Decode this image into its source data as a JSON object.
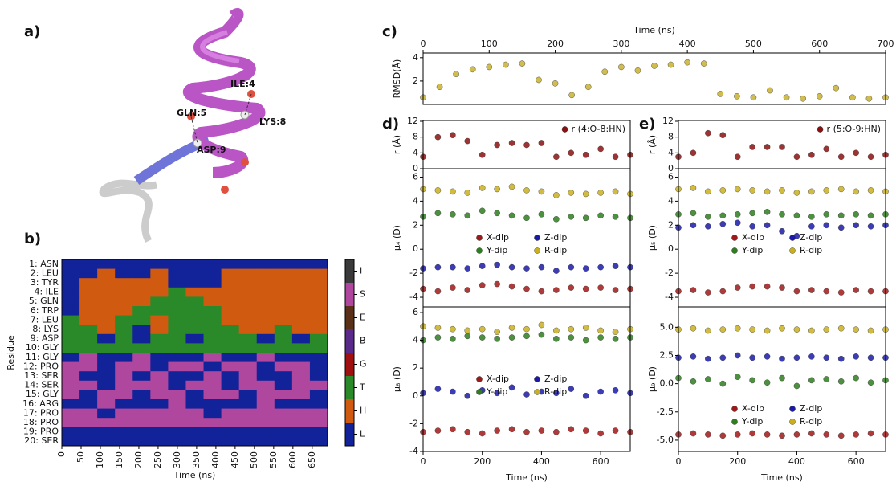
{
  "panel_labels": [
    "a)",
    "b)",
    "c)",
    "d)",
    "e)"
  ],
  "structure": {
    "labels": [
      "ILE:4",
      "GLN:5",
      "LYS:8",
      "ASP:9"
    ]
  },
  "chart_data": [
    {
      "type": "heatmap",
      "ylabel": "Residue",
      "xlabel": "Time (ns)",
      "categories": [
        "1: ASN",
        "2: LEU",
        "3: TYR",
        "4: ILE",
        "5: GLN",
        "6: TRP",
        "7: LEU",
        "8: LYS",
        "9: ASP",
        "10: GLY",
        "11: GLY",
        "12: PRO",
        "13: SER",
        "14: SER",
        "15: GLY",
        "16: ARG",
        "17: PRO",
        "18: PRO",
        "19: PRO",
        "20: SER"
      ],
      "xlim": [
        0,
        690
      ],
      "xticks": [
        0,
        50,
        100,
        150,
        200,
        250,
        300,
        350,
        400,
        450,
        500,
        550,
        600,
        650
      ],
      "colorbar": {
        "labels": [
          "I",
          "S",
          "E",
          "B",
          "G",
          "T",
          "H",
          "L"
        ],
        "colors": [
          "#3a3a3a",
          "#b0479e",
          "#5a3018",
          "#5a2a8a",
          "#a01010",
          "#2a8a2a",
          "#d05a10",
          "#12239a"
        ]
      },
      "matrix": [
        [
          7,
          7,
          7,
          7,
          7,
          7,
          7,
          7,
          7,
          7,
          7,
          7,
          7,
          7,
          7
        ],
        [
          7,
          7,
          6,
          7,
          7,
          6,
          7,
          7,
          7,
          6,
          6,
          6,
          6,
          6,
          6
        ],
        [
          7,
          6,
          6,
          6,
          6,
          6,
          7,
          7,
          7,
          6,
          6,
          6,
          6,
          6,
          6
        ],
        [
          7,
          6,
          6,
          6,
          6,
          6,
          5,
          6,
          6,
          6,
          6,
          6,
          6,
          6,
          6
        ],
        [
          7,
          6,
          6,
          6,
          6,
          5,
          5,
          5,
          6,
          6,
          6,
          6,
          6,
          6,
          6
        ],
        [
          7,
          6,
          6,
          6,
          5,
          5,
          5,
          5,
          5,
          6,
          6,
          6,
          6,
          6,
          6
        ],
        [
          5,
          6,
          6,
          5,
          5,
          6,
          5,
          5,
          5,
          6,
          6,
          6,
          6,
          6,
          6
        ],
        [
          5,
          5,
          6,
          5,
          7,
          6,
          5,
          5,
          5,
          5,
          6,
          6,
          5,
          6,
          6
        ],
        [
          5,
          5,
          7,
          5,
          7,
          5,
          5,
          7,
          5,
          5,
          5,
          7,
          5,
          7,
          5
        ],
        [
          5,
          5,
          5,
          5,
          5,
          5,
          5,
          5,
          5,
          5,
          5,
          5,
          5,
          5,
          5
        ],
        [
          7,
          1,
          7,
          7,
          1,
          7,
          7,
          7,
          1,
          7,
          7,
          1,
          7,
          7,
          7
        ],
        [
          1,
          1,
          7,
          1,
          1,
          7,
          1,
          1,
          7,
          1,
          1,
          7,
          1,
          1,
          7
        ],
        [
          1,
          7,
          7,
          1,
          7,
          1,
          7,
          7,
          1,
          7,
          1,
          7,
          7,
          1,
          7
        ],
        [
          1,
          1,
          7,
          1,
          1,
          1,
          7,
          1,
          1,
          7,
          1,
          1,
          7,
          1,
          1
        ],
        [
          1,
          7,
          1,
          1,
          7,
          1,
          1,
          7,
          1,
          1,
          7,
          1,
          1,
          1,
          7
        ],
        [
          7,
          7,
          1,
          7,
          7,
          7,
          1,
          7,
          7,
          7,
          7,
          1,
          7,
          7,
          7
        ],
        [
          1,
          1,
          7,
          1,
          1,
          1,
          1,
          1,
          7,
          1,
          1,
          1,
          1,
          1,
          1
        ],
        [
          1,
          1,
          1,
          1,
          1,
          1,
          1,
          1,
          1,
          1,
          1,
          1,
          1,
          1,
          1
        ],
        [
          7,
          7,
          7,
          7,
          7,
          7,
          7,
          7,
          7,
          7,
          7,
          7,
          7,
          7,
          7
        ],
        [
          7,
          7,
          7,
          7,
          7,
          7,
          7,
          7,
          7,
          7,
          7,
          7,
          7,
          7,
          7
        ]
      ]
    },
    {
      "type": "scatter",
      "xlabel": "Time (ns)",
      "xaxis": "top",
      "ylabel": "RMSD(Å)",
      "xlim": [
        0,
        700
      ],
      "xticks": [
        0,
        100,
        200,
        300,
        400,
        500,
        600,
        700
      ],
      "ylim": [
        0,
        4.4
      ],
      "yticks": [
        2,
        4
      ],
      "x": [
        0,
        25,
        50,
        75,
        100,
        125,
        150,
        175,
        200,
        225,
        250,
        275,
        300,
        325,
        350,
        375,
        400,
        425,
        450,
        475,
        500,
        525,
        550,
        575,
        600,
        625,
        650,
        675,
        700
      ],
      "color": "#c8b030",
      "values": [
        0.6,
        1.5,
        2.6,
        3.0,
        3.2,
        3.4,
        3.5,
        2.1,
        1.8,
        0.8,
        1.5,
        2.8,
        3.2,
        2.9,
        3.3,
        3.4,
        3.6,
        3.5,
        0.9,
        0.7,
        0.6,
        1.2,
        0.6,
        0.5,
        0.7,
        1.4,
        0.6,
        0.5,
        0.6
      ]
    },
    {
      "type": "scatter",
      "ylabel": "r (Å)",
      "xlim": [
        0,
        700
      ],
      "ylim": [
        0,
        12.2
      ],
      "yticks": [
        0,
        4,
        8,
        12
      ],
      "legend": "upper right",
      "x": [
        0,
        50,
        100,
        150,
        200,
        250,
        300,
        350,
        400,
        450,
        500,
        550,
        600,
        650,
        700
      ],
      "series": [
        {
          "name": "r (4:O-8:HN)",
          "color": "#8b1010",
          "values": [
            3,
            8,
            8.5,
            7,
            3.5,
            6,
            6.5,
            6,
            6.5,
            3,
            4,
            3.5,
            5,
            3,
            3.5
          ]
        }
      ]
    },
    {
      "type": "scatter",
      "ylabel": "μ₄ (D)",
      "xlim": [
        0,
        700
      ],
      "ylim": [
        -4.8,
        6.7
      ],
      "yticks": [
        -4,
        -2,
        0,
        2,
        4,
        6
      ],
      "legend": "center",
      "x": [
        0,
        50,
        100,
        150,
        200,
        250,
        300,
        350,
        400,
        450,
        500,
        550,
        600,
        650,
        700
      ],
      "series": [
        {
          "name": "X-dip",
          "color": "#a01818",
          "values": [
            -3.3,
            -3.5,
            -3.2,
            -3.4,
            -3.0,
            -2.9,
            -3.1,
            -3.3,
            -3.5,
            -3.4,
            -3.2,
            -3.3,
            -3.2,
            -3.4,
            -3.3
          ]
        },
        {
          "name": "Y-dip",
          "color": "#2e7d1e",
          "values": [
            2.7,
            3.0,
            2.9,
            2.8,
            3.2,
            3.0,
            2.8,
            2.6,
            2.9,
            2.5,
            2.7,
            2.6,
            2.8,
            2.7,
            2.6
          ]
        },
        {
          "name": "Z-dip",
          "color": "#1a1aa8",
          "values": [
            -1.6,
            -1.5,
            -1.5,
            -1.6,
            -1.4,
            -1.3,
            -1.5,
            -1.6,
            -1.5,
            -1.8,
            -1.5,
            -1.6,
            -1.5,
            -1.4,
            -1.5
          ]
        },
        {
          "name": "R-dip",
          "color": "#c9b020",
          "values": [
            5.0,
            4.9,
            4.8,
            4.7,
            5.1,
            5.0,
            5.2,
            4.9,
            4.8,
            4.5,
            4.7,
            4.6,
            4.7,
            4.8,
            4.6
          ]
        }
      ]
    },
    {
      "type": "scatter",
      "ylabel": "μ₈ (D)",
      "xlabel": "Time (ns)",
      "xlim": [
        0,
        700
      ],
      "xticks": [
        0,
        200,
        400,
        600
      ],
      "ylim": [
        -4,
        6.4
      ],
      "yticks": [
        -4,
        -2,
        0,
        2,
        4,
        6
      ],
      "legend": "center",
      "x": [
        0,
        50,
        100,
        150,
        200,
        250,
        300,
        350,
        400,
        450,
        500,
        550,
        600,
        650,
        700
      ],
      "series": [
        {
          "name": "X-dip",
          "color": "#a01818",
          "values": [
            -2.6,
            -2.5,
            -2.4,
            -2.6,
            -2.7,
            -2.5,
            -2.4,
            -2.6,
            -2.5,
            -2.6,
            -2.4,
            -2.5,
            -2.7,
            -2.5,
            -2.6
          ]
        },
        {
          "name": "Y-dip",
          "color": "#2e7d1e",
          "values": [
            4.0,
            4.2,
            4.1,
            4.3,
            4.2,
            4.1,
            4.2,
            4.3,
            4.4,
            4.1,
            4.2,
            4.0,
            4.2,
            4.1,
            4.2
          ]
        },
        {
          "name": "Z-dip",
          "color": "#1a1aa8",
          "values": [
            0.2,
            0.5,
            0.3,
            0.0,
            0.4,
            0.2,
            0.6,
            0.1,
            0.3,
            0.2,
            0.5,
            0.0,
            0.3,
            0.4,
            0.2
          ]
        },
        {
          "name": "R-dip",
          "color": "#c9b020",
          "values": [
            5.0,
            4.9,
            4.8,
            4.7,
            4.8,
            4.6,
            4.9,
            4.8,
            5.1,
            4.7,
            4.8,
            4.9,
            4.7,
            4.6,
            4.8
          ]
        }
      ]
    },
    {
      "type": "scatter",
      "ylabel": "r (Å)",
      "xlim": [
        0,
        700
      ],
      "ylim": [
        0,
        12.2
      ],
      "yticks": [
        0,
        4,
        8,
        12
      ],
      "legend": "upper right",
      "x": [
        0,
        50,
        100,
        150,
        200,
        250,
        300,
        350,
        400,
        450,
        500,
        550,
        600,
        650,
        700
      ],
      "series": [
        {
          "name": "r (5:O-9:HN)",
          "color": "#8b1010",
          "values": [
            3,
            4,
            9,
            8.5,
            3,
            5.5,
            5.5,
            5.5,
            3,
            3.5,
            5,
            3,
            4,
            3,
            3.5
          ]
        }
      ]
    },
    {
      "type": "scatter",
      "ylabel": "μ₅ (D)",
      "xlim": [
        0,
        700
      ],
      "ylim": [
        -4.8,
        6.7
      ],
      "yticks": [
        -4,
        -2,
        0,
        2,
        4,
        6
      ],
      "legend": "center",
      "x": [
        0,
        50,
        100,
        150,
        200,
        250,
        300,
        350,
        400,
        450,
        500,
        550,
        600,
        650,
        700
      ],
      "series": [
        {
          "name": "X-dip",
          "color": "#a01818",
          "values": [
            -3.5,
            -3.4,
            -3.6,
            -3.5,
            -3.2,
            -3.1,
            -3.1,
            -3.2,
            -3.5,
            -3.4,
            -3.5,
            -3.6,
            -3.4,
            -3.5,
            -3.5
          ]
        },
        {
          "name": "Y-dip",
          "color": "#2e7d1e",
          "values": [
            2.9,
            3.0,
            2.7,
            2.8,
            2.9,
            3.0,
            3.1,
            2.9,
            2.8,
            2.7,
            2.9,
            2.8,
            2.9,
            2.8,
            2.9
          ]
        },
        {
          "name": "Z-dip",
          "color": "#1a1aa8",
          "values": [
            1.8,
            2.0,
            1.9,
            2.1,
            2.2,
            1.9,
            2.0,
            1.5,
            1.1,
            1.9,
            2.0,
            1.8,
            2.0,
            1.9,
            2.0
          ]
        },
        {
          "name": "R-dip",
          "color": "#c9b020",
          "values": [
            5.0,
            5.1,
            4.8,
            4.9,
            5.0,
            4.9,
            4.8,
            4.9,
            4.7,
            4.8,
            4.9,
            5.0,
            4.8,
            4.9,
            4.8
          ]
        }
      ]
    },
    {
      "type": "scatter",
      "ylabel": "μ₉ (D)",
      "xlabel": "Time (ns)",
      "xlim": [
        0,
        700
      ],
      "xticks": [
        0,
        200,
        400,
        600
      ],
      "ylim": [
        -6,
        6.8
      ],
      "yticks": [
        {
          "value": -5,
          "label": "-5.0"
        },
        {
          "value": -2.5,
          "label": "-2.5"
        },
        {
          "value": 0,
          "label": "0.0"
        },
        {
          "value": 2.5,
          "label": "2.5"
        },
        {
          "value": 5,
          "label": "5.0"
        }
      ],
      "legend": "lower center",
      "x": [
        0,
        50,
        100,
        150,
        200,
        250,
        300,
        350,
        400,
        450,
        500,
        550,
        600,
        650,
        700
      ],
      "series": [
        {
          "name": "X-dip",
          "color": "#a01818",
          "values": [
            -4.5,
            -4.4,
            -4.5,
            -4.6,
            -4.5,
            -4.4,
            -4.5,
            -4.6,
            -4.5,
            -4.4,
            -4.5,
            -4.6,
            -4.5,
            -4.4,
            -4.5
          ]
        },
        {
          "name": "Y-dip",
          "color": "#2e7d1e",
          "values": [
            0.5,
            0.2,
            0.4,
            0.0,
            0.6,
            0.3,
            0.1,
            0.5,
            -0.2,
            0.3,
            0.4,
            0.2,
            0.5,
            0.1,
            0.3
          ]
        },
        {
          "name": "Z-dip",
          "color": "#1a1aa8",
          "values": [
            2.3,
            2.4,
            2.2,
            2.3,
            2.5,
            2.3,
            2.4,
            2.2,
            2.3,
            2.4,
            2.3,
            2.2,
            2.4,
            2.3,
            2.3
          ]
        },
        {
          "name": "R-dip",
          "color": "#c9b020",
          "values": [
            4.8,
            4.9,
            4.7,
            4.8,
            4.9,
            4.8,
            4.7,
            4.9,
            4.8,
            4.7,
            4.8,
            4.9,
            4.8,
            4.7,
            4.8
          ]
        }
      ]
    }
  ]
}
